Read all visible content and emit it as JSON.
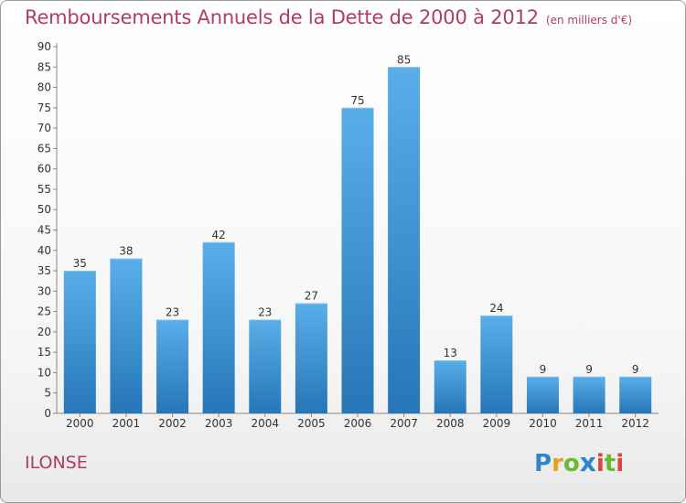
{
  "header": {
    "title": "Remboursements Annuels de la Dette de 2000 à 2012",
    "subtitle": "(en milliers d'€)"
  },
  "footer": {
    "commune": "ILONSE",
    "logo_letters": [
      "P",
      "r",
      "o",
      "x",
      "i",
      "t",
      "i"
    ]
  },
  "colors": {
    "bar_top": "#5aaee8",
    "bar_bottom": "#2676b8",
    "title": "#b23a6a"
  },
  "chart_data": {
    "type": "bar",
    "title": "Remboursements Annuels de la Dette de 2000 à 2012",
    "subtitle": "(en milliers d'€)",
    "xlabel": "",
    "ylabel": "",
    "categories": [
      "2000",
      "2001",
      "2002",
      "2003",
      "2004",
      "2005",
      "2006",
      "2007",
      "2008",
      "2009",
      "2010",
      "2011",
      "2012"
    ],
    "values": [
      35,
      38,
      23,
      42,
      23,
      27,
      75,
      85,
      13,
      24,
      9,
      9,
      9
    ],
    "ylim": [
      0,
      90
    ],
    "yticks": [
      0,
      5,
      10,
      15,
      20,
      25,
      30,
      35,
      40,
      45,
      50,
      55,
      60,
      65,
      70,
      75,
      80,
      85,
      90
    ],
    "grid": false,
    "legend": "none"
  }
}
